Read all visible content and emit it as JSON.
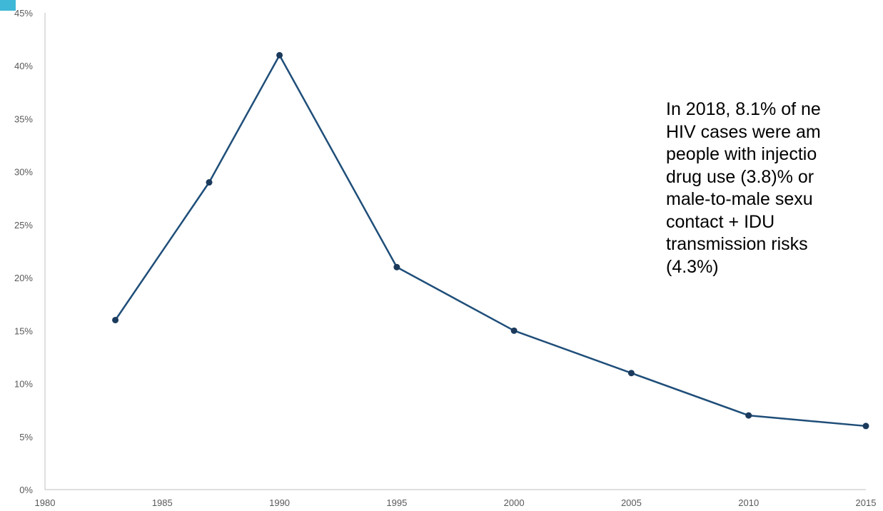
{
  "chart_data": {
    "type": "line",
    "title": "",
    "xlabel": "",
    "ylabel": "",
    "xlim": [
      1980,
      2015
    ],
    "ylim": [
      0,
      45
    ],
    "x_ticks": [
      "1980",
      "1985",
      "1990",
      "1995",
      "2000",
      "2005",
      "2010",
      "2015"
    ],
    "y_ticks": [
      "0%",
      "5%",
      "10%",
      "15%",
      "20%",
      "25%",
      "30%",
      "35%",
      "40%",
      "45%"
    ],
    "grid": false,
    "legend": "none",
    "series": [
      {
        "color": "#1f4e79",
        "points": [
          {
            "x": 1983,
            "y": 16
          },
          {
            "x": 1987,
            "y": 29
          },
          {
            "x": 1990,
            "y": 41
          },
          {
            "x": 1995,
            "y": 21
          },
          {
            "x": 2000,
            "y": 15
          },
          {
            "x": 2005,
            "y": 11
          },
          {
            "x": 2010,
            "y": 7
          },
          {
            "x": 2015,
            "y": 6
          }
        ]
      }
    ],
    "annotation": "In 2018, 8.1% of ne\nHIV cases were am\npeople with injectio\ndrug use (3.8)% or\nmale-to-male sexu\ncontact + IDU\ntransmission risks\n(4.3%)"
  },
  "colors": {
    "line": "#1f4e79",
    "marker": "#1b3a5c",
    "axis": "#bfbfbf",
    "corner_accent": "#3fb7d6"
  }
}
